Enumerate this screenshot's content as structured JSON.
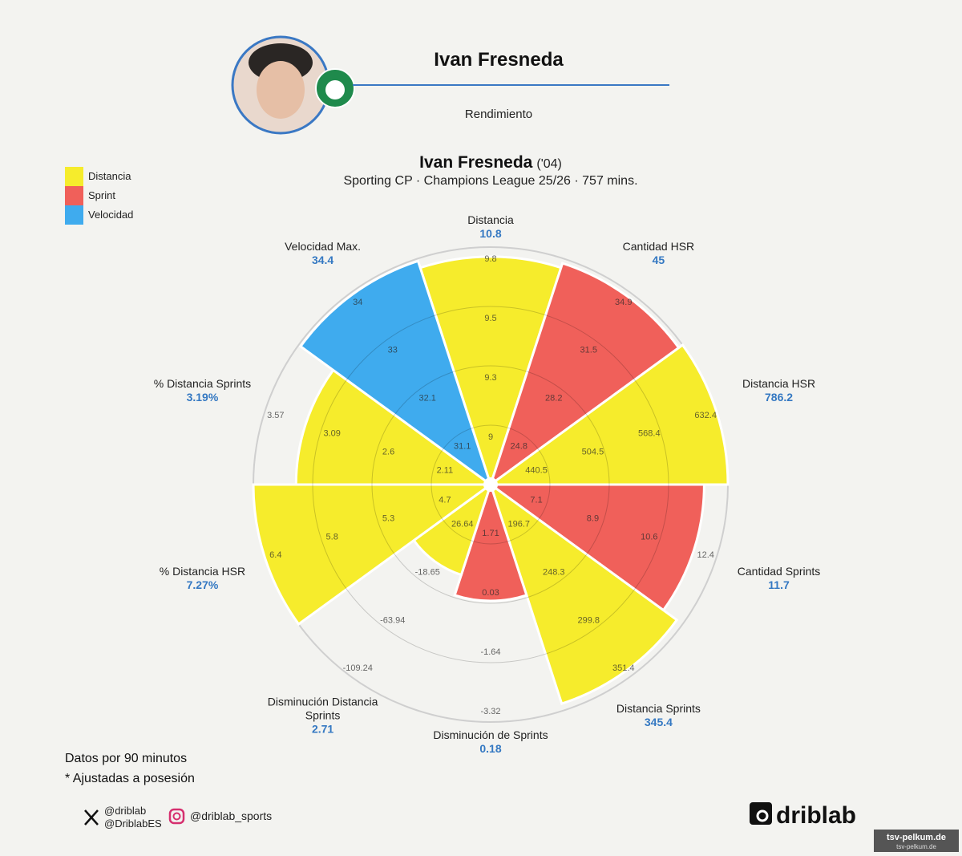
{
  "header": {
    "name": "Ivan Fresneda",
    "subtitle": "Rendimiento"
  },
  "chart_data": {
    "type": "pizza",
    "title": "Ivan Fresneda",
    "title_suffix": "('04)",
    "subtitle": "Sporting CP · Champions League 25/26 · 757 mins.",
    "legend": [
      {
        "name": "Distancia",
        "color": "#f6ec2c"
      },
      {
        "name": "Sprint",
        "color": "#f0605a"
      },
      {
        "name": "Velocidad",
        "color": "#3fabee"
      }
    ],
    "legend_position": "top-left",
    "categories": [
      "Distancia",
      "Cantidad HSR",
      "Distancia HSR",
      "Cantidad Sprints",
      "Distancia Sprints",
      "Disminución de Sprints",
      "Disminución Distancia Sprints",
      "% Distancia HSR",
      "% Distancia Sprints",
      "Velocidad Max."
    ],
    "values": [
      96,
      98,
      100,
      90,
      97,
      49,
      40,
      100,
      82,
      99
    ],
    "colors": [
      "#f6ec2c",
      "#f0605a",
      "#f6ec2c",
      "#f0605a",
      "#f6ec2c",
      "#f0605a",
      "#f6ec2c",
      "#f6ec2c",
      "#f6ec2c",
      "#3fabee"
    ],
    "metric_values": [
      10.8,
      45,
      786.2,
      11.7,
      345.4,
      0.18,
      2.71,
      7.27,
      3.19,
      34.4
    ],
    "metric_value_labels": [
      null,
      null,
      null,
      null,
      null,
      null,
      null,
      "7.27%",
      "3.19%",
      null
    ],
    "ring_labels": [
      [
        9,
        9.3,
        9.5,
        9.8
      ],
      [
        24.8,
        28.2,
        31.5,
        34.9
      ],
      [
        440.5,
        504.5,
        568.4,
        632.4
      ],
      [
        7.1,
        8.9,
        10.6,
        12.4
      ],
      [
        196.7,
        248.3,
        299.8,
        351.4
      ],
      [
        1.71,
        0.03,
        -1.64,
        -3.32
      ],
      [
        26.64,
        -18.65,
        -63.94,
        -109.24
      ],
      [
        4.7,
        5.3,
        5.8,
        6.4
      ],
      [
        2.11,
        2.6,
        3.09,
        3.57
      ],
      [
        31.1,
        32.1,
        33,
        34
      ]
    ],
    "ylim": [
      0,
      100
    ],
    "yticks": [
      25,
      50,
      75,
      100
    ],
    "grid": true
  },
  "notes": [
    "Datos por 90 minutos",
    "* Ajustadas a posesión"
  ],
  "social": {
    "x_handles": [
      "@driblab",
      "@DriblabES"
    ],
    "instagram": "@driblab_sports"
  },
  "brand": "driblab",
  "watermark": [
    "tsv-pelkum.de",
    "tsv-pelkum.de"
  ]
}
